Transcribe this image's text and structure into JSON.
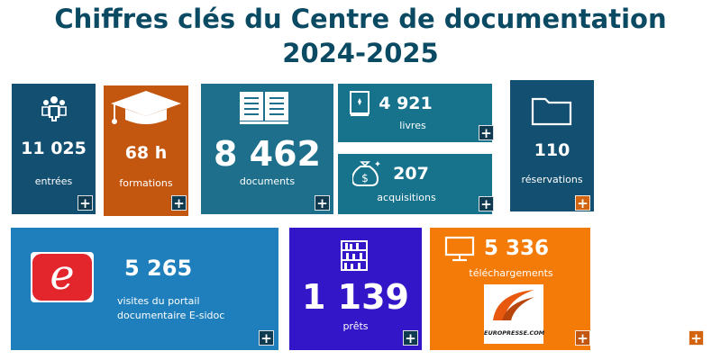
{
  "page": {
    "title_line1": "Chiffres clés du Centre de documentation",
    "title_line2": "2024-2025"
  },
  "tiles": {
    "entrees": {
      "value": "11 025",
      "label": "entrées",
      "color": "#134f70"
    },
    "formations": {
      "value": "68 h",
      "label": "formations",
      "color": "#c4570f"
    },
    "documents": {
      "value": "8 462",
      "label": "documents",
      "color": "#1d6f8c"
    },
    "livres": {
      "value": "4 921",
      "label": "livres",
      "color": "#17728c"
    },
    "acquisitions": {
      "value": "207",
      "label": "acquisitions",
      "color": "#17728c"
    },
    "reservations": {
      "value": "110",
      "label": "réservations",
      "color": "#134f70"
    },
    "esidoc": {
      "value": "5 265",
      "label_line1": "visites du portail",
      "label_line2": "documentaire E-sidoc",
      "logo_letter": "e",
      "color": "#1f7fbd"
    },
    "prets": {
      "value": "1 139",
      "label": "prêts",
      "color": "#3316c7"
    },
    "telechargements": {
      "value": "5 336",
      "label": "téléchargements",
      "logo_text": "EUROPRESSE.COM",
      "color": "#f47b07"
    }
  },
  "icons": {
    "entrees": "people-icon",
    "formations": "graduation-cap-icon",
    "documents": "open-book-icon",
    "livres": "book-icon",
    "acquisitions": "money-bag-icon",
    "reservations": "folder-icon",
    "prets": "bookshelf-icon",
    "telechargements": "monitor-icon",
    "plus": "+"
  }
}
